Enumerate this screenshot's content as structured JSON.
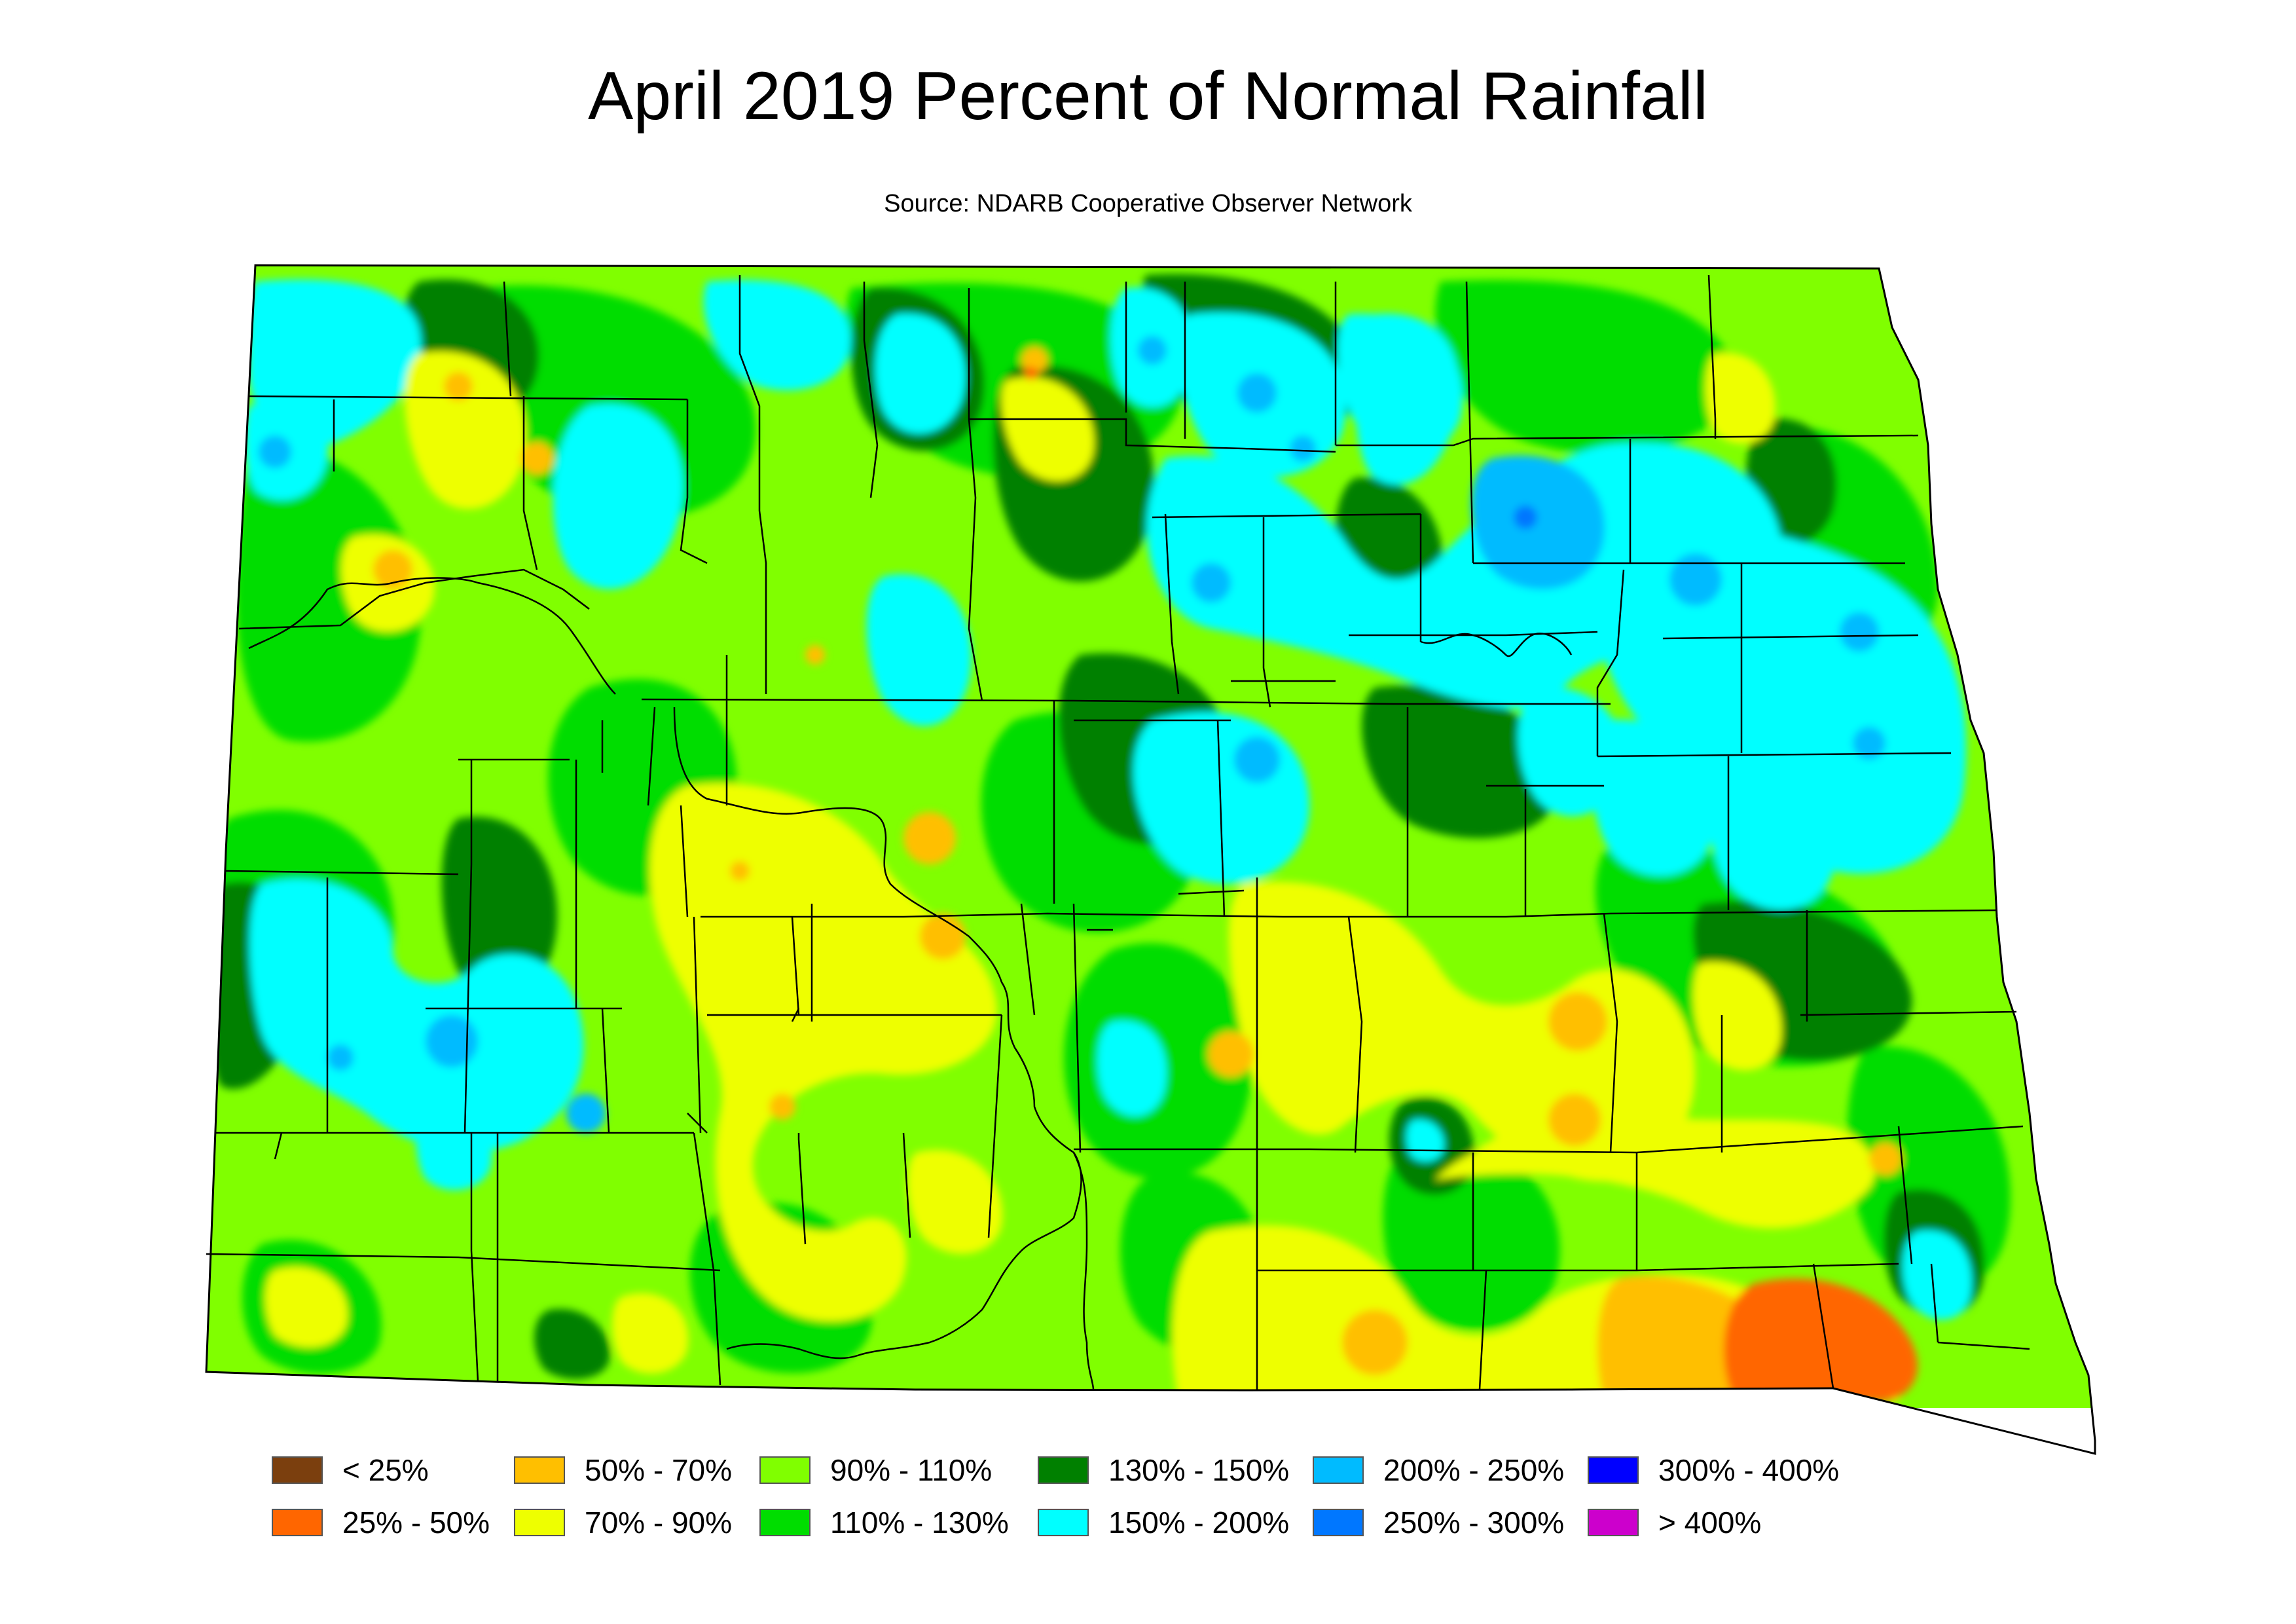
{
  "title": "April 2019 Percent of Normal Rainfall",
  "subtitle": "Source: NDARB Cooperative Observer Network",
  "legend": [
    {
      "label": "< 25%",
      "color": "#7b3f0e"
    },
    {
      "label": "25% - 50%",
      "color": "#ff6600"
    },
    {
      "label": "50% - 70%",
      "color": "#ffbf00"
    },
    {
      "label": "70% - 90%",
      "color": "#eeff00"
    },
    {
      "label": "90% - 110%",
      "color": "#80ff00"
    },
    {
      "label": "110% - 130%",
      "color": "#00dd00"
    },
    {
      "label": "130% - 150%",
      "color": "#008000"
    },
    {
      "label": "150% - 200%",
      "color": "#00ffff"
    },
    {
      "label": "200% - 250%",
      "color": "#00bbff"
    },
    {
      "label": "250% - 300%",
      "color": "#0077ff"
    },
    {
      "label": "300% - 400%",
      "color": "#0000ff"
    },
    {
      "label": "> 400%",
      "color": "#cc00cc"
    }
  ],
  "map": {
    "base_color": "#80ff00",
    "county_line_color": "#000000"
  }
}
